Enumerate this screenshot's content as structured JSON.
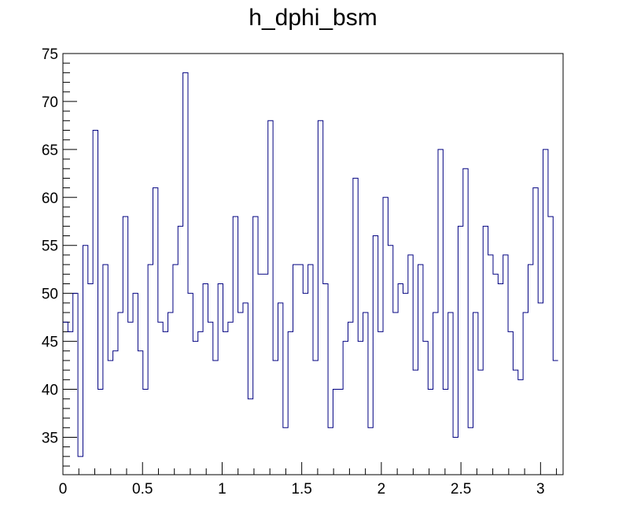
{
  "chart_data": {
    "type": "histogram",
    "title": "h_dphi_bsm",
    "xlabel": "",
    "ylabel": "",
    "xlim": [
      0,
      3.1416
    ],
    "ylim": [
      31.1,
      75
    ],
    "line_color": "#000080",
    "grid": false,
    "x_ticks": [
      0,
      0.5,
      1,
      1.5,
      2,
      2.5,
      3
    ],
    "x_tick_labels": [
      "0",
      "0.5",
      "1",
      "1.5",
      "2",
      "2.5",
      "3"
    ],
    "y_ticks": [
      35,
      40,
      45,
      50,
      55,
      60,
      65,
      70,
      75
    ],
    "y_tick_labels": [
      "35",
      "40",
      "45",
      "50",
      "55",
      "60",
      "65",
      "70",
      "75"
    ],
    "bin_width": 0.031416,
    "values": [
      47,
      46,
      50,
      33,
      55,
      51,
      67,
      40,
      53,
      43,
      44,
      48,
      58,
      47,
      50,
      44,
      40,
      53,
      61,
      47,
      46,
      48,
      53,
      57,
      73,
      50,
      45,
      46,
      51,
      47,
      43,
      51,
      46,
      47,
      58,
      48,
      49,
      39,
      58,
      52,
      52,
      68,
      43,
      49,
      36,
      46,
      53,
      53,
      50,
      53,
      43,
      68,
      51,
      36,
      40,
      40,
      45,
      47,
      62,
      45,
      48,
      36,
      56,
      46,
      60,
      55,
      48,
      51,
      50,
      54,
      42,
      53,
      45,
      40,
      48,
      65,
      40,
      48,
      35,
      57,
      63,
      36,
      48,
      42,
      57,
      54,
      52,
      51,
      54,
      46,
      42,
      41,
      48,
      53,
      61,
      49,
      65,
      58,
      43
    ]
  }
}
